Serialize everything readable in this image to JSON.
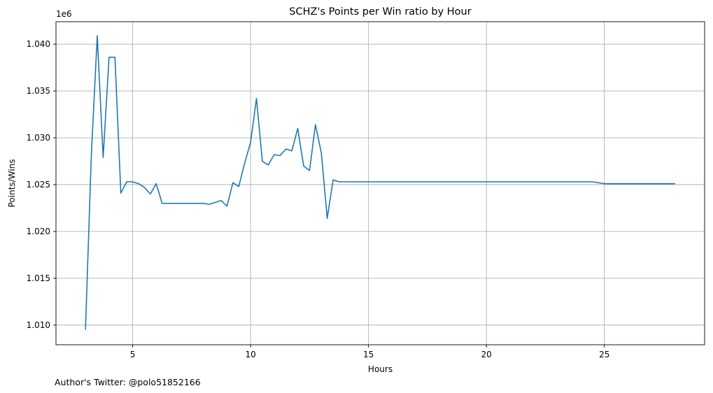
{
  "chart_data": {
    "type": "line",
    "title": "SCHZ's Points per Win ratio by Hour",
    "xlabel": "Hours",
    "ylabel": "Points/Wins",
    "y_offset_label": "1e6",
    "y_scale_factor": 1000000,
    "xlim": [
      1.75,
      29.25
    ],
    "ylim": [
      1.0079,
      1.0424
    ],
    "xticks": [
      5,
      10,
      15,
      20,
      25
    ],
    "yticks": [
      1.01,
      1.015,
      1.02,
      1.025,
      1.03,
      1.035,
      1.04
    ],
    "ytick_labels": [
      "1.010",
      "1.015",
      "1.020",
      "1.025",
      "1.030",
      "1.035",
      "1.040"
    ],
    "grid": true,
    "line_color": "#1f77b4",
    "series": [
      {
        "x": [
          3.0,
          3.25,
          3.5,
          3.75,
          4.0,
          4.25,
          4.5,
          4.75,
          5.0,
          5.25,
          5.5,
          5.75,
          6.0,
          6.25,
          6.5,
          6.75,
          7.0,
          7.25,
          7.5,
          7.75,
          8.0,
          8.25,
          8.5,
          8.75,
          9.0,
          9.25,
          9.5,
          9.75,
          10.0,
          10.25,
          10.5,
          10.75,
          11.0,
          11.25,
          11.5,
          11.75,
          12.0,
          12.25,
          12.5,
          12.75,
          13.0,
          13.25,
          13.5,
          13.75,
          14.0,
          24.5,
          25.0,
          28.0
        ],
        "y": [
          1.0095,
          1.0282,
          1.0409,
          1.0279,
          1.0386,
          1.0386,
          1.0241,
          1.0253,
          1.0253,
          1.0251,
          1.0247,
          1.024,
          1.0251,
          1.023,
          1.023,
          1.023,
          1.023,
          1.023,
          1.023,
          1.023,
          1.023,
          1.0229,
          1.0231,
          1.0233,
          1.0227,
          1.0252,
          1.0248,
          1.0273,
          1.0295,
          1.0342,
          1.0275,
          1.0271,
          1.0282,
          1.0281,
          1.0288,
          1.0286,
          1.031,
          1.027,
          1.0265,
          1.0314,
          1.0284,
          1.0214,
          1.0255,
          1.0253,
          1.0253,
          1.0253,
          1.0251,
          1.0251
        ]
      }
    ]
  },
  "footer": {
    "author": "Author's Twitter: @polo51852166"
  }
}
